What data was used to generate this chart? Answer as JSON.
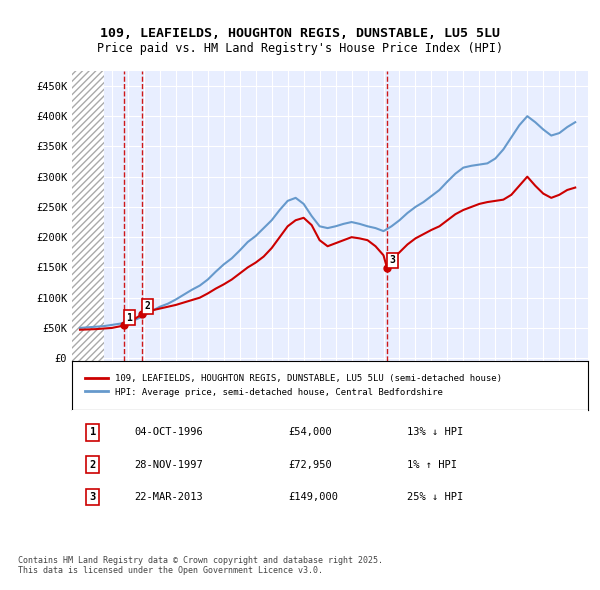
{
  "title_line1": "109, LEAFIELDS, HOUGHTON REGIS, DUNSTABLE, LU5 5LU",
  "title_line2": "Price paid vs. HM Land Registry's House Price Index (HPI)",
  "ylabel": "",
  "xlim_left": 1993.5,
  "xlim_right": 2025.8,
  "ylim_bottom": -5000,
  "ylim_top": 475000,
  "yticks": [
    0,
    50000,
    100000,
    150000,
    200000,
    250000,
    300000,
    350000,
    400000,
    450000
  ],
  "ytick_labels": [
    "£0",
    "£50K",
    "£100K",
    "£150K",
    "£200K",
    "£250K",
    "£300K",
    "£350K",
    "£400K",
    "£450K"
  ],
  "xticks": [
    1994,
    1995,
    1996,
    1997,
    1998,
    1999,
    2000,
    2001,
    2002,
    2003,
    2004,
    2005,
    2006,
    2007,
    2008,
    2009,
    2010,
    2011,
    2012,
    2013,
    2014,
    2015,
    2016,
    2017,
    2018,
    2019,
    2020,
    2021,
    2022,
    2023,
    2024,
    2025
  ],
  "hatch_region_end": 1995.5,
  "transactions": [
    {
      "label": "1",
      "date": 1996.76,
      "price": 54000
    },
    {
      "label": "2",
      "date": 1997.91,
      "price": 72950
    },
    {
      "label": "3",
      "date": 2013.22,
      "price": 149000
    }
  ],
  "red_line_x": [
    1994.0,
    1994.5,
    1995.0,
    1995.5,
    1996.0,
    1996.76,
    1997.0,
    1997.91,
    1998.5,
    1999.0,
    1999.5,
    2000.0,
    2000.5,
    2001.0,
    2001.5,
    2002.0,
    2002.5,
    2003.0,
    2003.5,
    2004.0,
    2004.5,
    2005.0,
    2005.5,
    2006.0,
    2006.5,
    2007.0,
    2007.5,
    2008.0,
    2008.5,
    2009.0,
    2009.5,
    2010.0,
    2010.5,
    2011.0,
    2011.5,
    2012.0,
    2012.5,
    2013.0,
    2013.22,
    2013.5,
    2014.0,
    2014.5,
    2015.0,
    2015.5,
    2016.0,
    2016.5,
    2017.0,
    2017.5,
    2018.0,
    2018.5,
    2019.0,
    2019.5,
    2020.0,
    2020.5,
    2021.0,
    2021.5,
    2022.0,
    2022.5,
    2023.0,
    2023.5,
    2024.0,
    2024.5,
    2025.0
  ],
  "red_line_y": [
    47000,
    47500,
    48000,
    49000,
    50000,
    54000,
    58000,
    72950,
    79000,
    82000,
    85000,
    88000,
    92000,
    96000,
    100000,
    107000,
    115000,
    122000,
    130000,
    140000,
    150000,
    158000,
    168000,
    182000,
    200000,
    218000,
    228000,
    232000,
    220000,
    195000,
    185000,
    190000,
    195000,
    200000,
    198000,
    195000,
    185000,
    170000,
    149000,
    162000,
    175000,
    188000,
    198000,
    205000,
    212000,
    218000,
    228000,
    238000,
    245000,
    250000,
    255000,
    258000,
    260000,
    262000,
    270000,
    285000,
    300000,
    285000,
    272000,
    265000,
    270000,
    278000,
    282000
  ],
  "blue_line_x": [
    1994.0,
    1994.5,
    1995.0,
    1995.5,
    1996.0,
    1996.5,
    1997.0,
    1997.5,
    1998.0,
    1998.5,
    1999.0,
    1999.5,
    2000.0,
    2000.5,
    2001.0,
    2001.5,
    2002.0,
    2002.5,
    2003.0,
    2003.5,
    2004.0,
    2004.5,
    2005.0,
    2005.5,
    2006.0,
    2006.5,
    2007.0,
    2007.5,
    2008.0,
    2008.5,
    2009.0,
    2009.5,
    2010.0,
    2010.5,
    2011.0,
    2011.5,
    2012.0,
    2012.5,
    2013.0,
    2013.5,
    2014.0,
    2014.5,
    2015.0,
    2015.5,
    2016.0,
    2016.5,
    2017.0,
    2017.5,
    2018.0,
    2018.5,
    2019.0,
    2019.5,
    2020.0,
    2020.5,
    2021.0,
    2021.5,
    2022.0,
    2022.5,
    2023.0,
    2023.5,
    2024.0,
    2024.5,
    2025.0
  ],
  "blue_line_y": [
    50000,
    51000,
    52000,
    53000,
    55000,
    57000,
    60000,
    64000,
    70000,
    78000,
    85000,
    90000,
    97000,
    105000,
    113000,
    120000,
    130000,
    143000,
    155000,
    165000,
    178000,
    192000,
    202000,
    215000,
    228000,
    245000,
    260000,
    265000,
    255000,
    235000,
    218000,
    215000,
    218000,
    222000,
    225000,
    222000,
    218000,
    215000,
    210000,
    218000,
    228000,
    240000,
    250000,
    258000,
    268000,
    278000,
    292000,
    305000,
    315000,
    318000,
    320000,
    322000,
    330000,
    345000,
    365000,
    385000,
    400000,
    390000,
    378000,
    368000,
    372000,
    382000,
    390000
  ],
  "red_color": "#cc0000",
  "blue_color": "#6699cc",
  "hatch_color": "#cccccc",
  "bg_color": "#e8eeff",
  "legend_label_red": "109, LEAFIELDS, HOUGHTON REGIS, DUNSTABLE, LU5 5LU (semi-detached house)",
  "legend_label_blue": "HPI: Average price, semi-detached house, Central Bedfordshire",
  "table_rows": [
    {
      "num": "1",
      "date": "04-OCT-1996",
      "price": "£54,000",
      "hpi": "13% ↓ HPI"
    },
    {
      "num": "2",
      "date": "28-NOV-1997",
      "price": "£72,950",
      "hpi": "1% ↑ HPI"
    },
    {
      "num": "3",
      "date": "22-MAR-2013",
      "price": "£149,000",
      "hpi": "25% ↓ HPI"
    }
  ],
  "footer_text": "Contains HM Land Registry data © Crown copyright and database right 2025.\nThis data is licensed under the Open Government Licence v3.0."
}
